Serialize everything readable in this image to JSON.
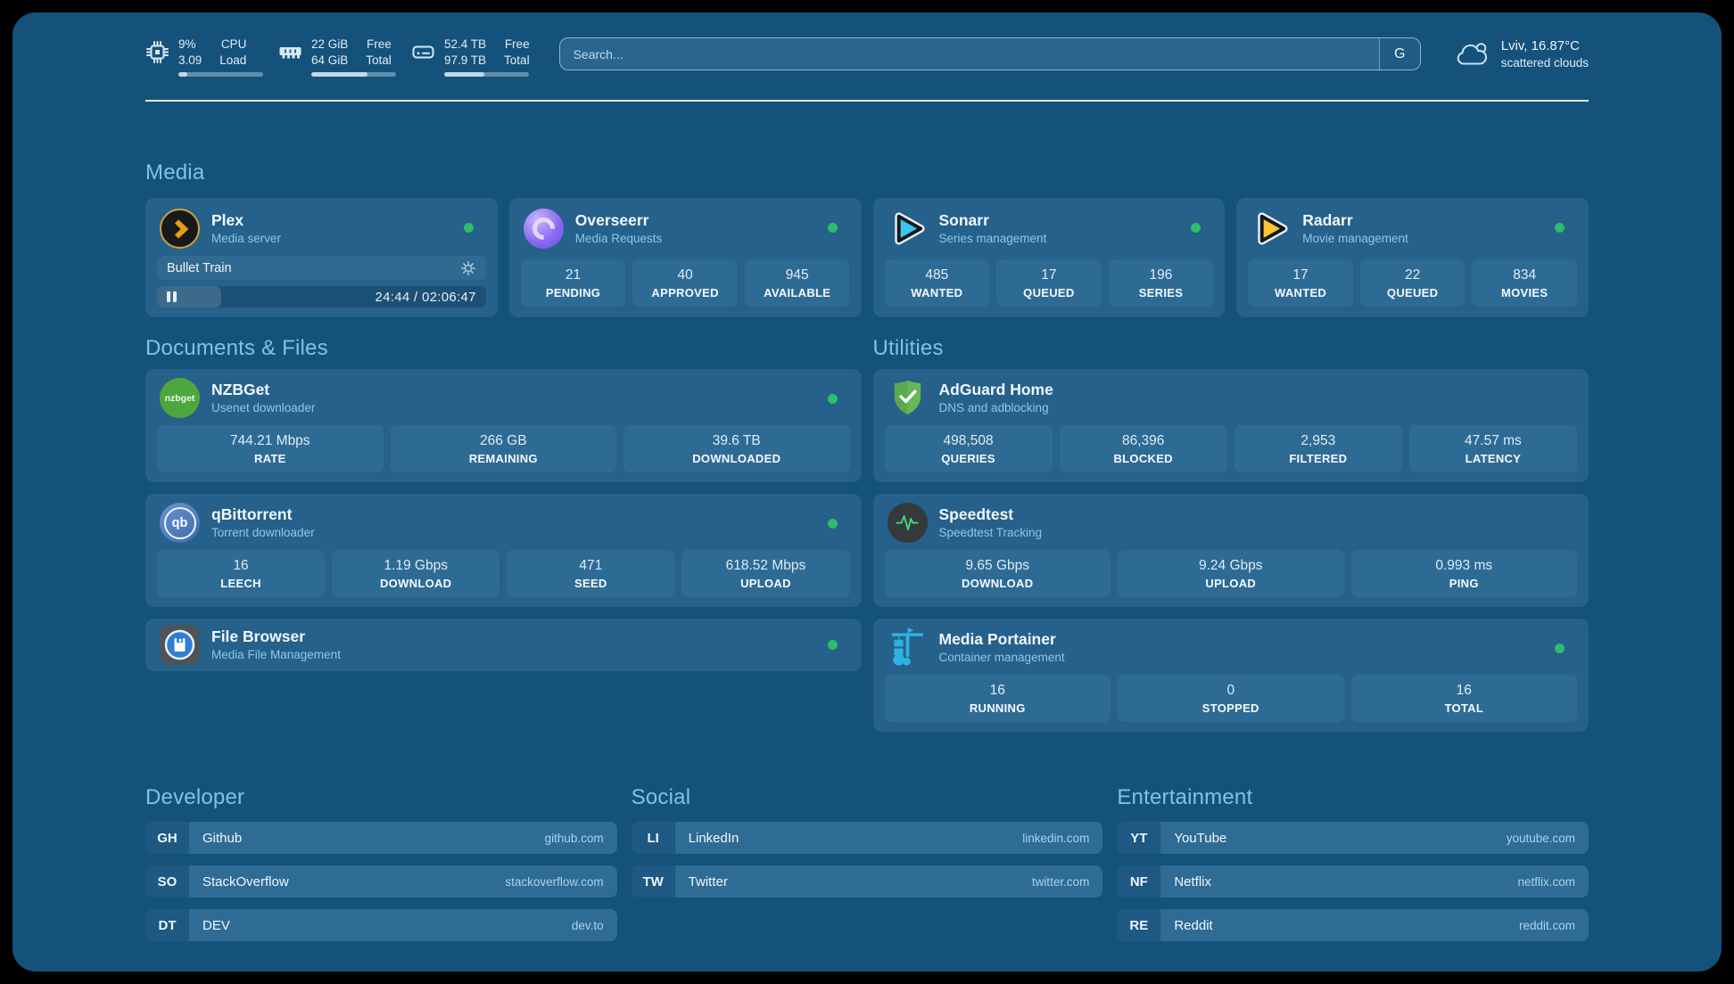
{
  "colors": {
    "page_bg": "#15527B",
    "card_bg": "#25618A",
    "tile_bg": "#2E6B94",
    "heading": "#7CC3E9",
    "online_green": "#2EBD6B",
    "plex_amber": "#E5A00D",
    "sonarr_cyan": "#3CC5F1",
    "radarr_yellow": "#FDC435",
    "nzbget_green": "#4EA73C",
    "adguard_green": "#68B65A",
    "portainer_blue": "#2FB1E3",
    "speedtest_pulse": "#3FD584"
  },
  "header": {
    "stats": [
      {
        "icon": "cpu-icon",
        "value1": "9%",
        "value2": "3.09",
        "label1": "CPU",
        "label2": "Load",
        "progress_pct": 10
      },
      {
        "icon": "memory-icon",
        "value1": "22 GiB",
        "value2": "64 GiB",
        "label1": "Free",
        "label2": "Total",
        "progress_pct": 66
      },
      {
        "icon": "disk-icon",
        "value1": "52.4 TB",
        "value2": "97.9 TB",
        "label1": "Free",
        "label2": "Total",
        "progress_pct": 47
      }
    ],
    "search": {
      "placeholder": "Search...",
      "engine": "G"
    },
    "weather": {
      "icon": "cloud-icon",
      "location": "Lviv, 16.87°C",
      "condition": "scattered clouds"
    }
  },
  "sections": {
    "media": "Media",
    "documents": "Documents & Files",
    "utilities": "Utilities",
    "developer": "Developer",
    "social": "Social",
    "entertainment": "Entertainment"
  },
  "apps": {
    "plex": {
      "name": "Plex",
      "desc": "Media server",
      "online": true,
      "now_playing": "Bullet Train",
      "time": "24:44 / 02:06:47",
      "progress_pct": 19.5
    },
    "overseerr": {
      "name": "Overseerr",
      "desc": "Media Requests",
      "online": true,
      "stats": [
        {
          "value": "21",
          "label": "PENDING"
        },
        {
          "value": "40",
          "label": "APPROVED"
        },
        {
          "value": "945",
          "label": "AVAILABLE"
        }
      ]
    },
    "sonarr": {
      "name": "Sonarr",
      "desc": "Series management",
      "online": true,
      "stats": [
        {
          "value": "485",
          "label": "WANTED"
        },
        {
          "value": "17",
          "label": "QUEUED"
        },
        {
          "value": "196",
          "label": "SERIES"
        }
      ]
    },
    "radarr": {
      "name": "Radarr",
      "desc": "Movie management",
      "online": true,
      "stats": [
        {
          "value": "17",
          "label": "WANTED"
        },
        {
          "value": "22",
          "label": "QUEUED"
        },
        {
          "value": "834",
          "label": "MOVIES"
        }
      ]
    },
    "nzbget": {
      "name": "NZBGet",
      "desc": "Usenet downloader",
      "online": true,
      "icon_text": "nzbget",
      "stats": [
        {
          "value": "744.21 Mbps",
          "label": "RATE"
        },
        {
          "value": "266 GB",
          "label": "REMAINING"
        },
        {
          "value": "39.6 TB",
          "label": "DOWNLOADED"
        }
      ]
    },
    "qbittorrent": {
      "name": "qBittorrent",
      "desc": "Torrent downloader",
      "online": true,
      "icon_text": "qb",
      "stats": [
        {
          "value": "16",
          "label": "LEECH"
        },
        {
          "value": "1.19 Gbps",
          "label": "DOWNLOAD"
        },
        {
          "value": "471",
          "label": "SEED"
        },
        {
          "value": "618.52 Mbps",
          "label": "UPLOAD"
        }
      ]
    },
    "filebrowser": {
      "name": "File Browser",
      "desc": "Media File Management",
      "online": true
    },
    "adguard": {
      "name": "AdGuard Home",
      "desc": "DNS and adblocking",
      "online": false,
      "stats": [
        {
          "value": "498,508",
          "label": "QUERIES"
        },
        {
          "value": "86,396",
          "label": "BLOCKED"
        },
        {
          "value": "2,953",
          "label": "FILTERED"
        },
        {
          "value": "47.57 ms",
          "label": "LATENCY"
        }
      ]
    },
    "speedtest": {
      "name": "Speedtest",
      "desc": "Speedtest Tracking",
      "online": false,
      "stats": [
        {
          "value": "9.65 Gbps",
          "label": "DOWNLOAD"
        },
        {
          "value": "9.24 Gbps",
          "label": "UPLOAD"
        },
        {
          "value": "0.993 ms",
          "label": "PING"
        }
      ]
    },
    "portainer": {
      "name": "Media Portainer",
      "desc": "Container management",
      "online": true,
      "stats": [
        {
          "value": "16",
          "label": "RUNNING"
        },
        {
          "value": "0",
          "label": "STOPPED"
        },
        {
          "value": "16",
          "label": "TOTAL"
        }
      ]
    }
  },
  "links": {
    "developer": [
      {
        "abbr": "GH",
        "name": "Github",
        "url": "github.com"
      },
      {
        "abbr": "SO",
        "name": "StackOverflow",
        "url": "stackoverflow.com"
      },
      {
        "abbr": "DT",
        "name": "DEV",
        "url": "dev.to"
      }
    ],
    "social": [
      {
        "abbr": "LI",
        "name": "LinkedIn",
        "url": "linkedin.com"
      },
      {
        "abbr": "TW",
        "name": "Twitter",
        "url": "twitter.com"
      }
    ],
    "entertainment": [
      {
        "abbr": "YT",
        "name": "YouTube",
        "url": "youtube.com"
      },
      {
        "abbr": "NF",
        "name": "Netflix",
        "url": "netflix.com"
      },
      {
        "abbr": "RE",
        "name": "Reddit",
        "url": "reddit.com"
      }
    ]
  }
}
